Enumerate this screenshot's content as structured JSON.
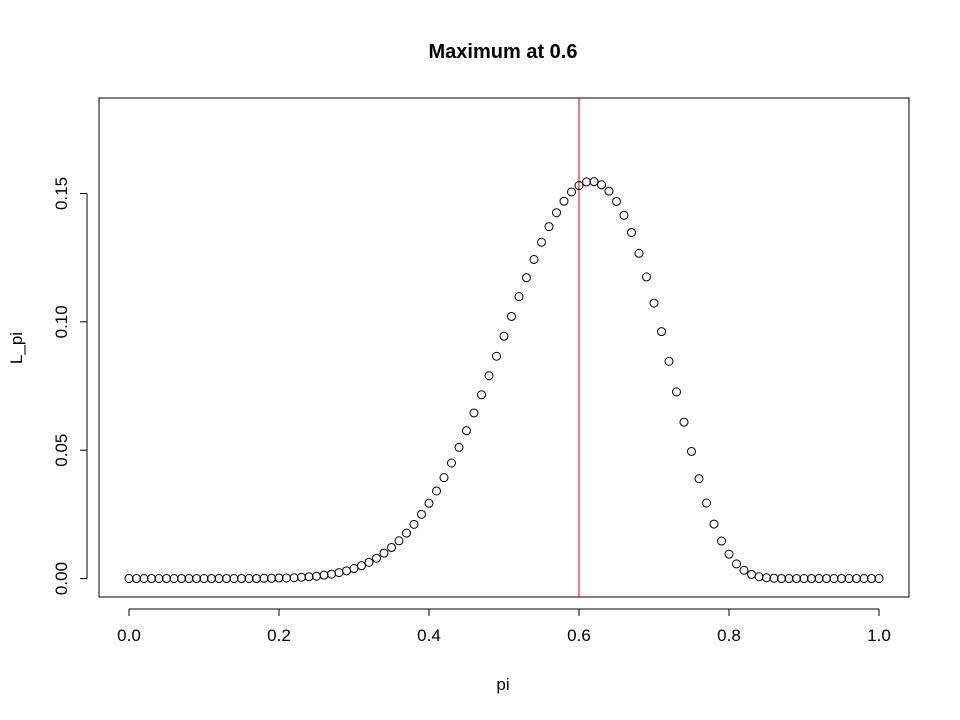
{
  "chart_data": {
    "type": "scatter",
    "title": "Maximum at 0.6",
    "xlabel": "pi",
    "ylabel": "L_pi",
    "xlim": [
      -0.04,
      1.04
    ],
    "ylim": [
      -0.0072,
      0.1872
    ],
    "xticks": [
      {
        "value": 0.0,
        "label": "0.0"
      },
      {
        "value": 0.2,
        "label": "0.2"
      },
      {
        "value": 0.4,
        "label": "0.4"
      },
      {
        "value": 0.6,
        "label": "0.6"
      },
      {
        "value": 0.8,
        "label": "0.8"
      },
      {
        "value": 1.0,
        "label": "1.0"
      }
    ],
    "yticks": [
      {
        "value": 0.0,
        "label": "0.00"
      },
      {
        "value": 0.05,
        "label": "0.05"
      },
      {
        "value": 0.1,
        "label": "0.10"
      },
      {
        "value": 0.15,
        "label": "0.15"
      }
    ],
    "marker": "open-circle",
    "point_color": "#000000",
    "vline": {
      "x": 0.6,
      "color": "#cc0000"
    },
    "grid": false,
    "series": [
      {
        "x": [
          0.0,
          0.01,
          0.02,
          0.03,
          0.04,
          0.05,
          0.06,
          0.07,
          0.08,
          0.09,
          0.1,
          0.11,
          0.12,
          0.13,
          0.14,
          0.15,
          0.16,
          0.17,
          0.18,
          0.19,
          0.2,
          0.21,
          0.22,
          0.23,
          0.24,
          0.25,
          0.26,
          0.27,
          0.28,
          0.29,
          0.3,
          0.31,
          0.32,
          0.33,
          0.34,
          0.35,
          0.36,
          0.37,
          0.38,
          0.39,
          0.4,
          0.41,
          0.42,
          0.43,
          0.44,
          0.45,
          0.46,
          0.47,
          0.48,
          0.49,
          0.5,
          0.51,
          0.52,
          0.53,
          0.54,
          0.55,
          0.56,
          0.57,
          0.58,
          0.59,
          0.6,
          0.61,
          0.62,
          0.63,
          0.64,
          0.65,
          0.66,
          0.67,
          0.68,
          0.69,
          0.7,
          0.71,
          0.72,
          0.73,
          0.74,
          0.75,
          0.76,
          0.77,
          0.78,
          0.79,
          0.8,
          0.81,
          0.82,
          0.83,
          0.84,
          0.85,
          0.86,
          0.87,
          0.88,
          0.89,
          0.9,
          0.91,
          0.92,
          0.93,
          0.94,
          0.95,
          0.96,
          0.97,
          0.98,
          0.99,
          1.0
        ],
        "y": [
          0.0,
          0.0,
          0.0,
          0.0,
          0.0,
          0.0,
          0.0,
          0.0,
          0.0,
          0.0,
          0.0,
          0.0,
          0.0,
          0.0,
          0.0,
          0.0,
          0.0,
          0.0,
          0.0001,
          0.0001,
          0.0002,
          0.0002,
          0.0003,
          0.0005,
          0.0007,
          0.0009,
          0.0013,
          0.0017,
          0.0023,
          0.003,
          0.0039,
          0.005,
          0.0063,
          0.0079,
          0.0099,
          0.0121,
          0.0147,
          0.0177,
          0.0211,
          0.025,
          0.0293,
          0.0341,
          0.0393,
          0.045,
          0.0511,
          0.0576,
          0.0645,
          0.0716,
          0.079,
          0.0866,
          0.0944,
          0.1021,
          0.1098,
          0.1172,
          0.1243,
          0.131,
          0.1371,
          0.1425,
          0.147,
          0.1506,
          0.1531,
          0.1545,
          0.1546,
          0.1534,
          0.1509,
          0.1469,
          0.1415,
          0.1348,
          0.1267,
          0.1175,
          0.1073,
          0.0962,
          0.0846,
          0.0727,
          0.0609,
          0.0495,
          0.0389,
          0.0294,
          0.0212,
          0.0146,
          0.0095,
          0.0057,
          0.0032,
          0.0016,
          0.0007,
          0.0003,
          0.0001,
          0.0,
          0.0,
          0.0,
          0.0,
          0.0,
          0.0,
          0.0,
          0.0,
          0.0,
          0.0,
          0.0,
          0.0,
          0.0,
          0.0
        ]
      }
    ]
  }
}
